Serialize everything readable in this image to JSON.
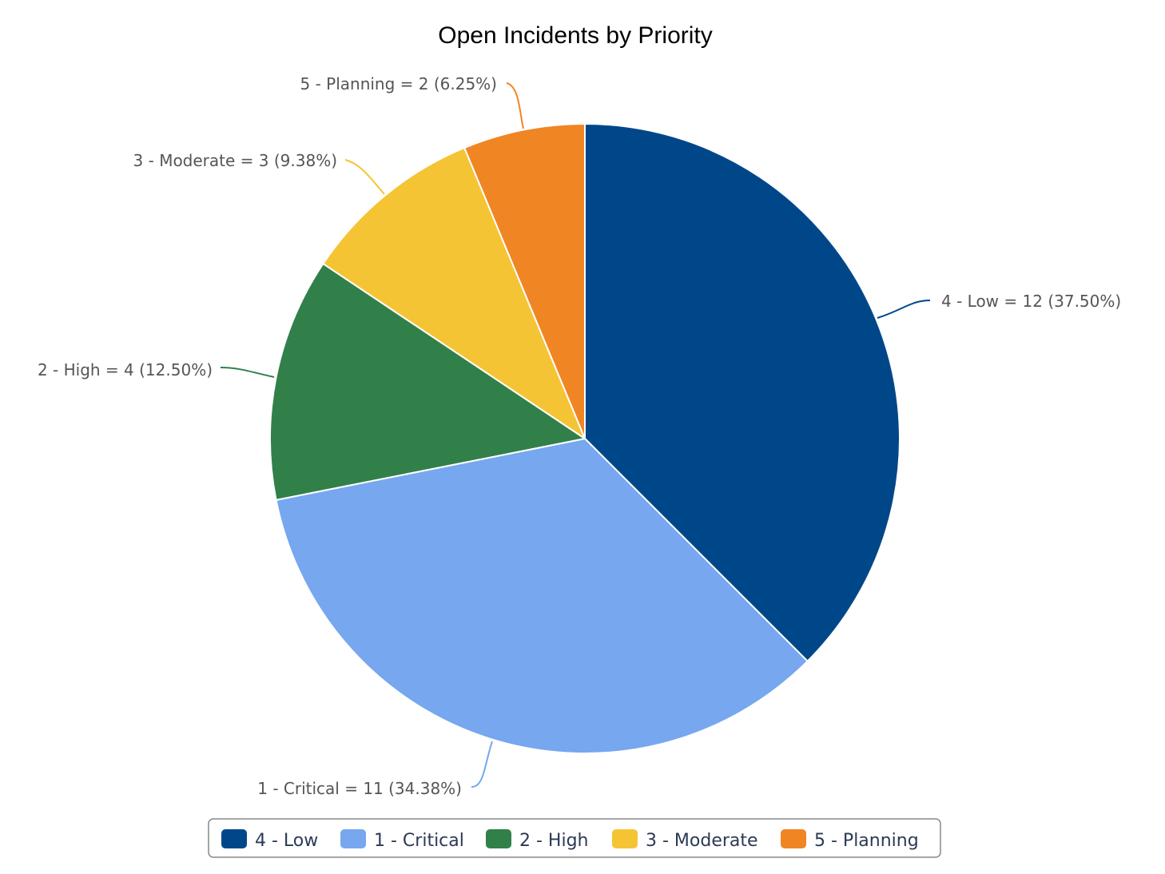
{
  "chart_data": {
    "type": "pie",
    "title": "Open Incidents by Priority",
    "slices": [
      {
        "name": "4 - Low",
        "value": 12,
        "percent": "37.50%",
        "label": "4 - Low = 12 (37.50%)",
        "color": "#00478a"
      },
      {
        "name": "1 - Critical",
        "value": 11,
        "percent": "34.38%",
        "label": "1 - Critical = 11 (34.38%)",
        "color": "#76a7ef"
      },
      {
        "name": "2 - High",
        "value": 4,
        "percent": "12.50%",
        "label": "2 - High = 4 (12.50%)",
        "color": "#31804a"
      },
      {
        "name": "3 - Moderate",
        "value": 3,
        "percent": "9.38%",
        "label": "3 - Moderate = 3 (9.38%)",
        "color": "#f5c434"
      },
      {
        "name": "5 - Planning",
        "value": 2,
        "percent": "6.25%",
        "label": "5 - Planning = 2 (6.25%)",
        "color": "#f08524"
      }
    ],
    "legend": {
      "position": "bottom",
      "items": [
        "4 - Low",
        "1 - Critical",
        "2 - High",
        "3 - Moderate",
        "5 - Planning"
      ]
    }
  }
}
